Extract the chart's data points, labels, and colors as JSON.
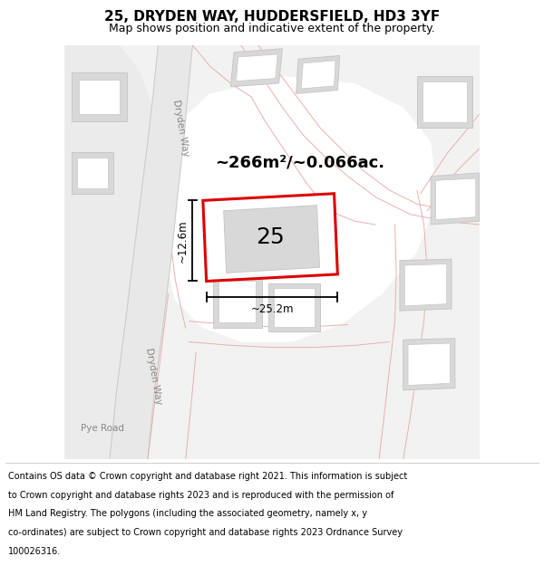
{
  "title": "25, DRYDEN WAY, HUDDERSFIELD, HD3 3YF",
  "subtitle": "Map shows position and indicative extent of the property.",
  "footer_line1": "Contains OS data © Crown copyright and database right 2021. This information is subject",
  "footer_line2": "to Crown copyright and database rights 2023 and is reproduced with the permission of",
  "footer_line3": "HM Land Registry. The polygons (including the associated geometry, namely x, y",
  "footer_line4": "co-ordinates) are subject to Crown copyright and database rights 2023 Ordnance Survey",
  "footer_line5": "100026316.",
  "map_bg": "#f2f2f2",
  "building_fill": "#d8d8d8",
  "building_edge": "#c8c8c8",
  "road_fill": "#ffffff",
  "road_edge": "#e8b0b0",
  "highlight_color": "#dd0000",
  "text_color": "#000000",
  "road_label_color": "#888888",
  "label_25": "25",
  "area_label": "~266m²/~0.066ac.",
  "width_label": "~25.2m",
  "height_label": "~12.6m",
  "title_fontsize": 11,
  "subtitle_fontsize": 9,
  "footer_fontsize": 7,
  "label_fontsize": 18,
  "area_fontsize": 13,
  "dim_fontsize": 8.5
}
